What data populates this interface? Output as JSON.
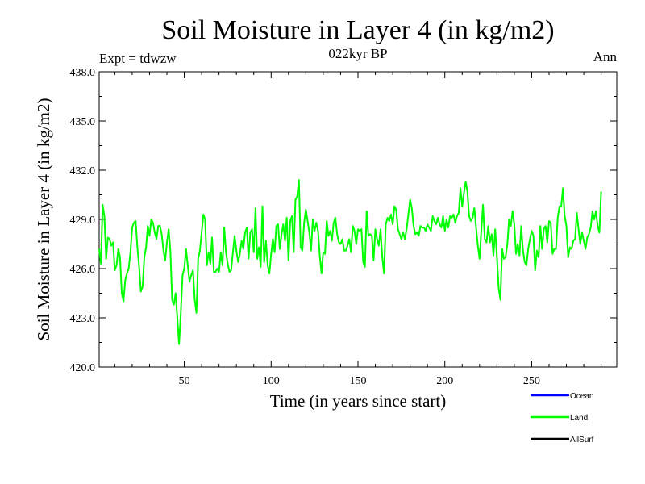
{
  "chart_data": {
    "type": "line",
    "title": "Soil Moisture in Layer 4 (in kg/m2)",
    "subtitle": "022kyr BP",
    "top_left_label": "Expt = tdwzw",
    "top_right_label": "Ann",
    "xlabel": "Time (in years since start)",
    "ylabel": "Soil Moisture in Layer 4 (in kg/m2)",
    "xlim": [
      1,
      299
    ],
    "ylim": [
      420,
      438
    ],
    "x_ticks": [
      50,
      100,
      150,
      200,
      250
    ],
    "x_tick_labels": [
      "50",
      "100",
      "150",
      "200",
      "250"
    ],
    "y_ticks": [
      420,
      423,
      426,
      429,
      432,
      435,
      438
    ],
    "y_tick_labels": [
      "420.0",
      "423.0",
      "426.0",
      "429.0",
      "432.0",
      "435.0",
      "438.0"
    ],
    "grid": false,
    "legend_position": "bottom-right",
    "legend": [
      {
        "name": "Ocean",
        "color": "#0000ff"
      },
      {
        "name": "Land",
        "color": "#00ff00"
      },
      {
        "name": "AllSurf",
        "color": "#000000"
      }
    ],
    "series": [
      {
        "name": "Land",
        "color": "#00ff00",
        "x_start": 1,
        "x_step": 1,
        "values": [
          427.2,
          426.3,
          429.9,
          429.2,
          426.6,
          427.9,
          427.8,
          427.4,
          427.6,
          425.9,
          426.2,
          427.2,
          426.7,
          424.5,
          424.0,
          425.3,
          425.7,
          426.0,
          427.0,
          428.5,
          428.8,
          428.9,
          427.3,
          426.1,
          424.6,
          424.9,
          426.7,
          427.3,
          428.6,
          428.0,
          429.0,
          428.8,
          428.2,
          427.8,
          428.6,
          428.6,
          428.1,
          427.1,
          426.5,
          427.6,
          428.4,
          427.1,
          424.1,
          423.8,
          424.5,
          423.0,
          421.4,
          423.3,
          425.6,
          426.0,
          427.2,
          426.2,
          425.2,
          425.6,
          425.9,
          424.1,
          423.3,
          426.6,
          427.1,
          428.2,
          429.3,
          429.0,
          426.2,
          427.0,
          426.3,
          427.9,
          425.8,
          425.8,
          426.0,
          425.8,
          427.0,
          426.2,
          428.5,
          427.0,
          426.3,
          425.8,
          425.9,
          427.0,
          428.0,
          427.1,
          426.4,
          426.9,
          427.7,
          427.2,
          428.2,
          428.5,
          426.6,
          428.2,
          428.4,
          427.0,
          429.7,
          426.6,
          427.3,
          426.1,
          429.8,
          426.4,
          427.7,
          426.2,
          425.7,
          426.9,
          427.8,
          427.0,
          428.6,
          428.7,
          427.2,
          428.1,
          428.7,
          427.7,
          429.1,
          426.5,
          428.9,
          429.2,
          427.0,
          430.2,
          430.4,
          431.4,
          427.3,
          427.1,
          428.8,
          429.6,
          428.9,
          428.2,
          427.1,
          429.0,
          428.3,
          428.8,
          428.3,
          426.8,
          425.7,
          427.0,
          426.9,
          428.9,
          428.0,
          428.3,
          427.7,
          428.8,
          429.1,
          428.1,
          427.6,
          427.5,
          427.8,
          427.1,
          427.1,
          427.4,
          427.8,
          427.0,
          428.6,
          428.3,
          427.5,
          428.4,
          428.3,
          428.4,
          426.4,
          426.1,
          429.5,
          428.0,
          428.1,
          428.0,
          426.5,
          428.4,
          427.8,
          427.4,
          428.4,
          426.7,
          425.7,
          428.7,
          429.1,
          428.9,
          429.3,
          428.7,
          429.8,
          429.6,
          428.4,
          428.1,
          427.8,
          428.2,
          427.8,
          428.4,
          429.3,
          430.2,
          429.7,
          428.6,
          428.1,
          428.2,
          428.0,
          428.6,
          428.5,
          428.5,
          428.3,
          428.7,
          428.5,
          428.3,
          429.2,
          428.9,
          428.7,
          429.1,
          428.7,
          428.5,
          429.2,
          428.3,
          429.0,
          428.5,
          429.2,
          429.1,
          429.3,
          428.8,
          429.2,
          429.4,
          430.9,
          429.8,
          430.6,
          431.3,
          430.7,
          429.2,
          428.9,
          429.1,
          429.7,
          428.5,
          427.4,
          426.6,
          428.3,
          429.9,
          427.8,
          427.6,
          428.6,
          427.6,
          428.1,
          426.8,
          428.4,
          426.7,
          424.8,
          424.1,
          427.2,
          426.6,
          426.7,
          427.5,
          429.0,
          428.6,
          429.5,
          428.7,
          426.9,
          427.5,
          426.8,
          428.6,
          427.1,
          426.4,
          426.2,
          427.2,
          427.8,
          428.3,
          428.0,
          425.9,
          427.1,
          426.7,
          428.6,
          427.2,
          428.4,
          428.6,
          427.6,
          428.9,
          428.8,
          426.9,
          427.2,
          427.2,
          429.1,
          429.8,
          429.8,
          430.9,
          429.2,
          428.6,
          426.7,
          427.3,
          427.2,
          427.7,
          427.8,
          429.4,
          428.4,
          427.5,
          428.2,
          427.7,
          427.2,
          427.9,
          428.1,
          428.5,
          429.5,
          429.0,
          429.5,
          428.6,
          428.2,
          430.7
        ]
      }
    ]
  }
}
